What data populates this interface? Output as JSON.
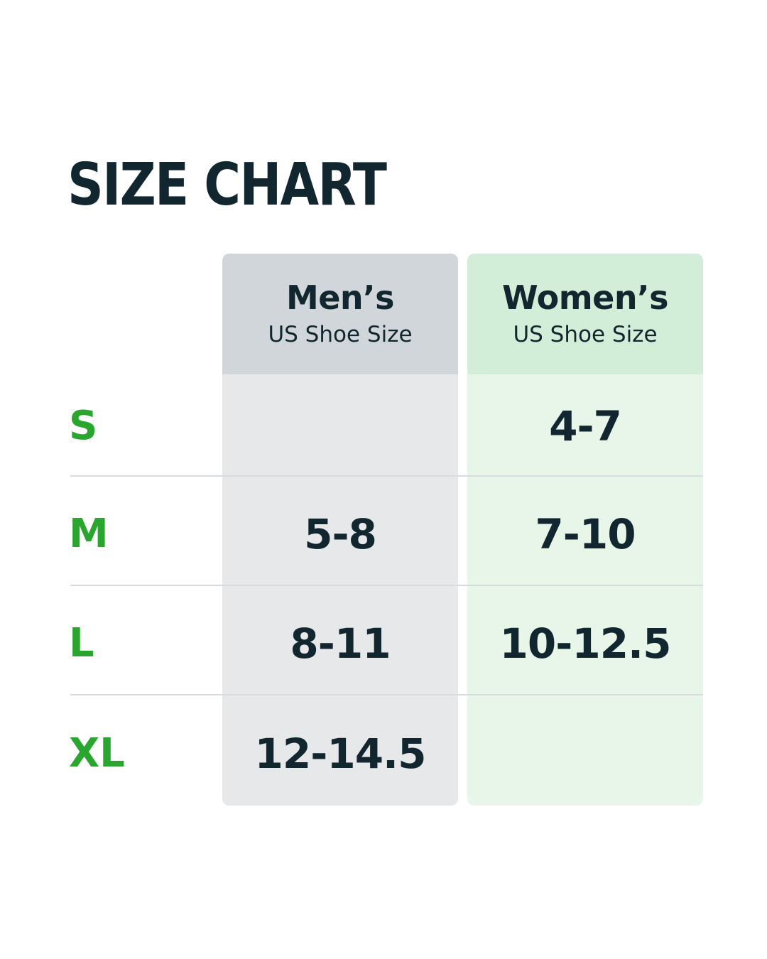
{
  "title": "SIZE CHART",
  "columns": [
    {
      "title": "Men’s",
      "subtitle": "US Shoe Size"
    },
    {
      "title": "Women’s",
      "subtitle": "US Shoe Size"
    }
  ],
  "rows": [
    {
      "size": "S",
      "mens": "",
      "womens": "4-7"
    },
    {
      "size": "M",
      "mens": "5-8",
      "womens": "7-10"
    },
    {
      "size": "L",
      "mens": "8-11",
      "womens": "10-12.5"
    },
    {
      "size": "XL",
      "mens": "12-14.5",
      "womens": ""
    }
  ],
  "colors": {
    "text": "#12262f",
    "size_label": "#2aa52e",
    "mens_header_bg": "#d0d6da",
    "mens_body_bg": "#e6e8ea",
    "womens_header_bg": "#d3eed8",
    "womens_body_bg": "#e8f6ea",
    "divider": "#d9dcdf"
  }
}
